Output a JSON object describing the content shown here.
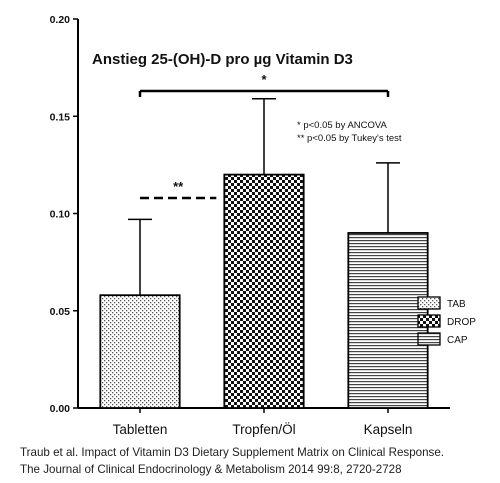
{
  "chart_data": {
    "type": "bar",
    "title": "Anstieg 25-(OH)-D pro µg Vitamin D3",
    "categories": [
      "Tabletten",
      "Tropfen/Öl",
      "Kapseln"
    ],
    "values": [
      0.058,
      0.12,
      0.09
    ],
    "error_upper": [
      0.097,
      0.159,
      0.126
    ],
    "ylim": [
      0,
      0.2
    ],
    "yticks": [
      "0.00",
      "0.05",
      "0.10",
      "0.15",
      "0.20"
    ],
    "ytick_values": [
      0,
      0.05,
      0.1,
      0.15,
      0.2
    ],
    "legend": [
      "TAB",
      "DROP",
      "CAP"
    ],
    "legend_position": "right",
    "annotations": [
      {
        "text": "*",
        "from": 0,
        "to": 2,
        "style": "solid"
      },
      {
        "text": "**",
        "from": 0,
        "to": 1,
        "style": "dashed"
      }
    ],
    "notes": [
      "* p<0.05 by ANCOVA",
      "** p<0.05 by Tukey's test"
    ],
    "grid": false
  },
  "citation": {
    "line1": "Traub et al. Impact of Vitamin D3 Dietary Supplement Matrix on Clinical Response.",
    "line2": "The Journal of Clinical Endocrinology & Metabolism 2014 99:8, 2720-2728"
  }
}
